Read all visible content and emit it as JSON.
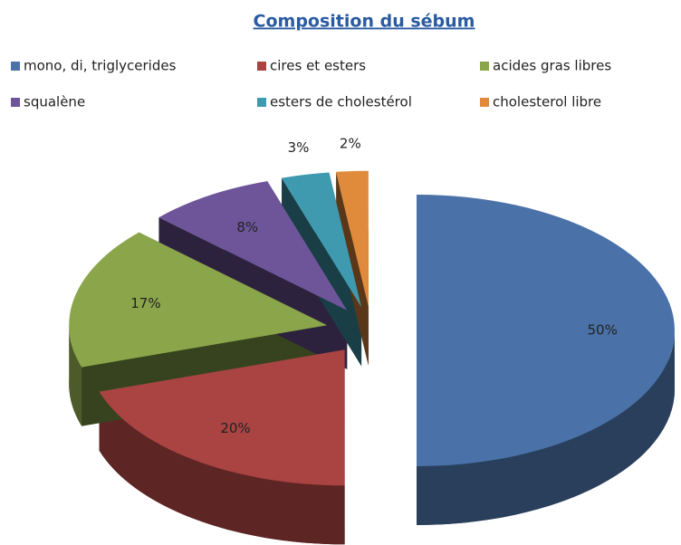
{
  "chart_data": {
    "type": "pie3d",
    "title": "Composition du sébum",
    "categories": [
      "mono, di, triglycerides",
      "cires et esters",
      "acides gras libres",
      "squalène",
      "esters de cholestérol",
      "cholesterol libre"
    ],
    "values": [
      50,
      20,
      17,
      8,
      3,
      2
    ],
    "value_labels": [
      "50%",
      "20%",
      "17%",
      "8%",
      "3%",
      "2%"
    ],
    "colors": [
      "#4a72a8",
      "#a94442",
      "#8aa54a",
      "#6e559a",
      "#3f9ab0",
      "#e08a3c"
    ],
    "legend": "top"
  }
}
